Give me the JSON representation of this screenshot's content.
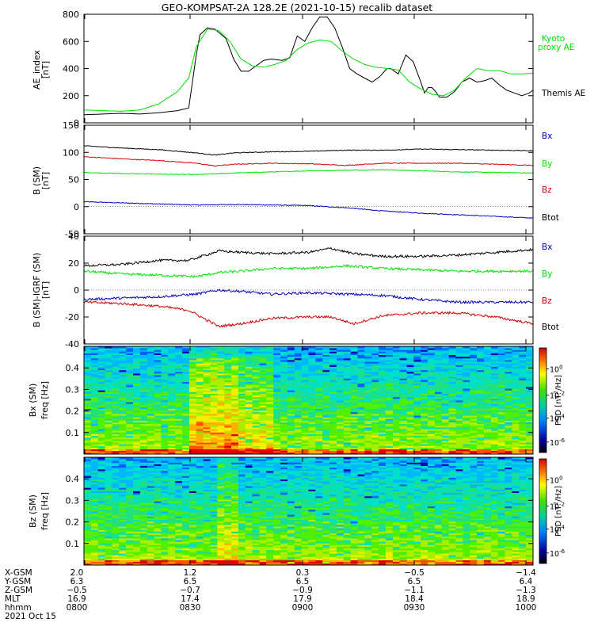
{
  "title": "GEO-KOMPSAT-2A 128.2E (2021-10-15) recalib dataset",
  "colors": {
    "black": "#000000",
    "green": "#00e000",
    "red": "#d00000",
    "blue": "#0000c0"
  },
  "x_ticks": [
    "0800",
    "0830",
    "0900",
    "0930",
    "1000"
  ],
  "ephemeris": {
    "labels": [
      "X-GSM",
      "Y-GSM",
      "Z-GSM",
      "MLT",
      "hhmm"
    ],
    "columns": [
      [
        "2.0",
        "6.3",
        "-0.5",
        "16.9",
        "0800"
      ],
      [
        "1.2",
        "6.5",
        "-0.7",
        "17.4",
        "0830"
      ],
      [
        "0.3",
        "6.5",
        "-0.9",
        "17.9",
        "0900"
      ],
      [
        "-0.5",
        "6.5",
        "-1.1",
        "18.4",
        "0930"
      ],
      [
        "-1.4",
        "6.4",
        "-1.3",
        "18.9",
        "1000"
      ]
    ],
    "date": "2021 Oct 15"
  },
  "chart_data": [
    {
      "type": "line",
      "panel": "ae",
      "ylabel": "AE_index [nT]",
      "ylim": [
        0,
        800
      ],
      "yticks": [
        0,
        200,
        400,
        600,
        800
      ],
      "xlim": [
        0,
        120
      ],
      "series": [
        {
          "name": "Themis AE",
          "color": "black",
          "x": [
            0,
            5,
            10,
            15,
            20,
            25,
            28,
            30,
            31,
            33,
            35,
            38,
            40,
            42,
            44,
            46,
            48,
            50,
            53,
            55,
            57,
            59,
            61,
            63,
            65,
            67,
            69,
            71,
            73,
            75,
            77,
            79,
            81,
            82,
            84,
            86,
            88,
            90,
            91,
            92,
            93,
            94,
            95,
            97,
            99,
            101,
            103,
            105,
            107,
            109,
            111,
            113,
            115,
            117,
            119,
            120
          ],
          "values": [
            60,
            65,
            70,
            65,
            75,
            90,
            110,
            500,
            650,
            700,
            690,
            620,
            470,
            380,
            380,
            420,
            460,
            470,
            460,
            480,
            640,
            600,
            700,
            780,
            780,
            700,
            560,
            400,
            360,
            330,
            300,
            340,
            400,
            400,
            360,
            500,
            450,
            300,
            220,
            260,
            260,
            230,
            190,
            190,
            230,
            300,
            330,
            300,
            310,
            330,
            280,
            240,
            220,
            200,
            220,
            240
          ]
        },
        {
          "name": "Kyoto proxy AE",
          "color": "green",
          "x": [
            0,
            5,
            10,
            15,
            20,
            25,
            28,
            30,
            33,
            36,
            39,
            42,
            45,
            48,
            51,
            54,
            57,
            60,
            63,
            66,
            69,
            72,
            75,
            78,
            81,
            84,
            87,
            90,
            93,
            96,
            99,
            102,
            105,
            108,
            111,
            114,
            117,
            120
          ],
          "values": [
            95,
            90,
            85,
            95,
            140,
            230,
            330,
            560,
            690,
            680,
            600,
            470,
            420,
            410,
            430,
            460,
            540,
            590,
            610,
            600,
            530,
            470,
            430,
            410,
            400,
            390,
            300,
            250,
            210,
            200,
            240,
            330,
            400,
            385,
            385,
            360,
            360,
            365
          ]
        }
      ]
    },
    {
      "type": "line",
      "panel": "b_sm",
      "ylabel": "B (SM) [nT]",
      "ylim": [
        -50,
        150
      ],
      "yticks": [
        -50,
        0,
        50,
        100,
        150
      ],
      "xlim": [
        0,
        120
      ],
      "series": [
        {
          "name": "Bx",
          "color": "blue",
          "x": [
            0,
            15,
            30,
            40,
            50,
            60,
            70,
            80,
            90,
            100,
            110,
            120
          ],
          "values": [
            9,
            6,
            3,
            4,
            3,
            2,
            -2,
            -8,
            -12,
            -15,
            -18,
            -21
          ]
        },
        {
          "name": "By",
          "color": "green",
          "x": [
            0,
            10,
            20,
            30,
            40,
            50,
            60,
            70,
            80,
            90,
            100,
            110,
            120
          ],
          "values": [
            63,
            61,
            60,
            59,
            62,
            64,
            66,
            67,
            68,
            66,
            64,
            63,
            62
          ]
        },
        {
          "name": "Bz",
          "color": "red",
          "x": [
            0,
            10,
            20,
            30,
            35,
            40,
            50,
            60,
            70,
            80,
            90,
            100,
            110,
            120
          ],
          "values": [
            92,
            88,
            85,
            80,
            75,
            78,
            80,
            79,
            76,
            80,
            80,
            80,
            78,
            76
          ]
        },
        {
          "name": "Btot",
          "color": "black",
          "x": [
            0,
            10,
            20,
            30,
            35,
            40,
            50,
            60,
            70,
            80,
            90,
            100,
            110,
            120
          ],
          "values": [
            112,
            108,
            105,
            99,
            95,
            99,
            101,
            102,
            104,
            104,
            106,
            105,
            104,
            103
          ]
        }
      ]
    },
    {
      "type": "line",
      "panel": "b_minus_igrf",
      "ylabel": "B (SM)-IGRF (SM) [nT]",
      "ylim": [
        -40,
        40
      ],
      "yticks": [
        -40,
        -20,
        0,
        20,
        40
      ],
      "xlim": [
        0,
        120
      ],
      "series": [
        {
          "name": "Bx",
          "color": "blue",
          "x": [
            0,
            10,
            20,
            30,
            36,
            42,
            50,
            60,
            70,
            80,
            90,
            100,
            110,
            120
          ],
          "values": [
            -7,
            -6,
            -5,
            -3,
            0,
            -1,
            -3,
            -2,
            -3,
            -4,
            -7,
            -9,
            -9,
            -9
          ]
        },
        {
          "name": "By",
          "color": "green",
          "x": [
            0,
            10,
            20,
            30,
            36,
            42,
            50,
            60,
            70,
            80,
            90,
            100,
            110,
            120
          ],
          "values": [
            14,
            12,
            11,
            10,
            13,
            14,
            16,
            16,
            18,
            16,
            15,
            14,
            14,
            14
          ]
        },
        {
          "name": "Bz",
          "color": "red",
          "x": [
            0,
            10,
            20,
            28,
            36,
            42,
            50,
            60,
            66,
            72,
            80,
            90,
            100,
            110,
            120
          ],
          "values": [
            -9,
            -10,
            -12,
            -15,
            -27,
            -25,
            -21,
            -20,
            -20,
            -25,
            -19,
            -17,
            -17,
            -20,
            -25
          ]
        },
        {
          "name": "Btot",
          "color": "black",
          "x": [
            0,
            10,
            20,
            28,
            36,
            42,
            50,
            60,
            66,
            72,
            80,
            90,
            100,
            110,
            120
          ],
          "values": [
            18,
            19,
            22,
            22,
            29,
            28,
            27,
            28,
            31,
            27,
            25,
            25,
            26,
            28,
            30
          ]
        }
      ]
    },
    {
      "type": "heatmap",
      "panel": "bx_spectrogram",
      "ylabel": "Bx (SM) freq [Hz]",
      "ylim": [
        0,
        0.5
      ],
      "yticks": [
        0.1,
        0.2,
        0.3,
        0.4
      ],
      "colorbar_label": "PSD [nT^2/Hz]",
      "colorbar_ticks": [
        "10^0",
        "10^-2",
        "10^-4",
        "10^-6"
      ]
    },
    {
      "type": "heatmap",
      "panel": "bz_spectrogram",
      "ylabel": "Bz (SM) freq [Hz]",
      "ylim": [
        0,
        0.5
      ],
      "yticks": [
        0.1,
        0.2,
        0.3,
        0.4
      ],
      "colorbar_label": "PSD [nT^2/Hz]",
      "colorbar_ticks": [
        "10^0",
        "10^-2",
        "10^-4",
        "10^-6"
      ]
    }
  ]
}
